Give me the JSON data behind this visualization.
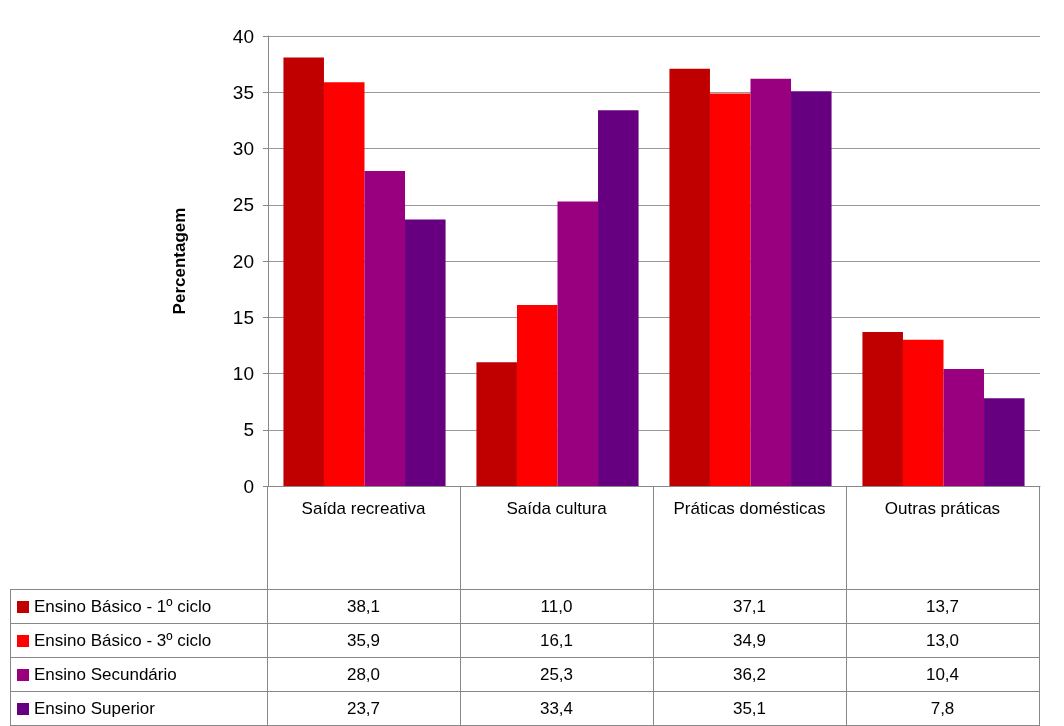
{
  "chart_data": {
    "type": "bar",
    "ylabel": "Percentagem",
    "categories": [
      "Saída recreativa",
      "Saída cultura",
      "Práticas domésticas",
      "Outras práticas"
    ],
    "series": [
      {
        "name": "Ensino Básico - 1º ciclo",
        "color": "#c00000",
        "values": [
          38.1,
          11.0,
          37.1,
          13.7
        ],
        "value_labels": [
          "38,1",
          "11,0",
          "37,1",
          "13,7"
        ]
      },
      {
        "name": "Ensino Básico - 3º ciclo",
        "color": "#ff0000",
        "values": [
          35.9,
          16.1,
          34.9,
          13.0
        ],
        "value_labels": [
          "35,9",
          "16,1",
          "34,9",
          "13,0"
        ]
      },
      {
        "name": "Ensino Secundário",
        "color": "#990080",
        "values": [
          28.0,
          25.3,
          36.2,
          10.4
        ],
        "value_labels": [
          "28,0",
          "25,3",
          "36,2",
          "10,4"
        ]
      },
      {
        "name": "Ensino Superior",
        "color": "#660080",
        "values": [
          23.7,
          33.4,
          35.1,
          7.8
        ],
        "value_labels": [
          "23,7",
          "33,4",
          "35,1",
          "7,8"
        ]
      }
    ],
    "ylim": [
      0,
      40
    ],
    "yticks": [
      0,
      5,
      10,
      15,
      20,
      25,
      30,
      35,
      40
    ],
    "grid": "y",
    "legend": "bottom"
  }
}
